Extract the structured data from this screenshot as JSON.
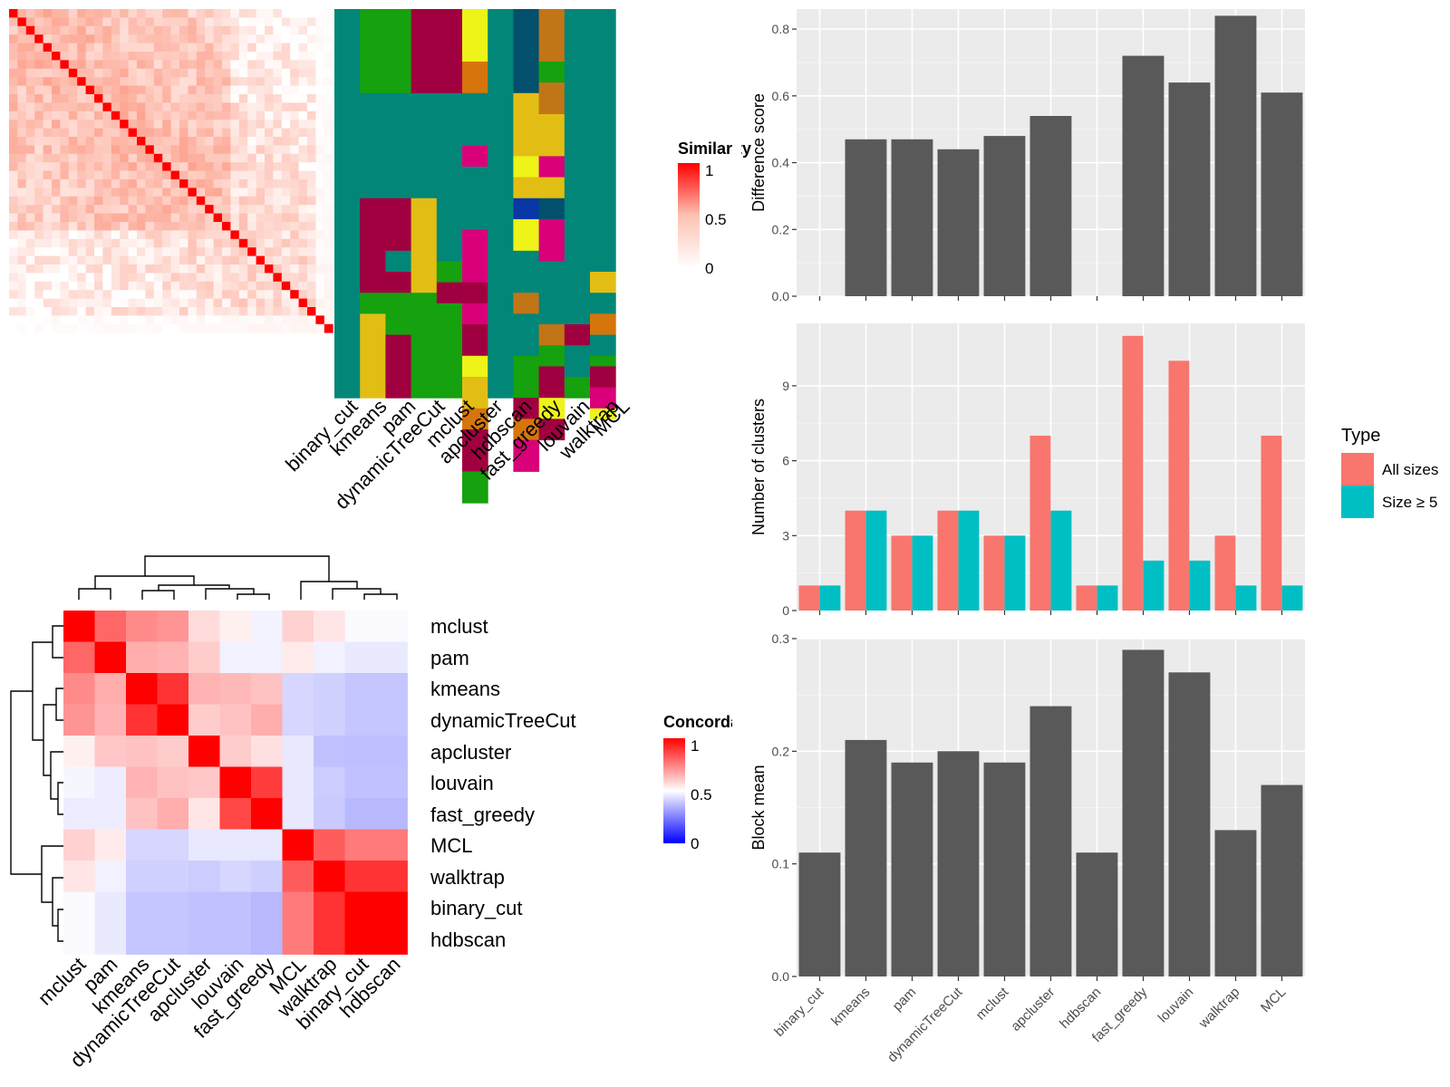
{
  "methods_order": [
    "binary_cut",
    "kmeans",
    "pam",
    "dynamicTreeCut",
    "mclust",
    "apcluster",
    "hdbscan",
    "fast_greedy",
    "louvain",
    "walktrap",
    "MCL"
  ],
  "similarity_panel": {
    "legend_title": "Similarity",
    "legend_ticks": [
      "1",
      "0.5",
      "0"
    ],
    "columns": [
      "binary_cut",
      "kmeans",
      "pam",
      "dynamicTreeCut",
      "mclust",
      "apcluster",
      "hdbscan",
      "fast_greedy",
      "louvain",
      "walktrap",
      "MCL"
    ],
    "palette": {
      "teal": "#028678",
      "green": "#16a10f",
      "darkred": "#a00040",
      "yellow": "#eef318",
      "orange": "#d6750b",
      "navy": "#03506e",
      "gold": "#e2be15",
      "pink": "#d90079",
      "brown": "#c27516",
      "blue": "#0838a6",
      "red": "#ff0000"
    }
  },
  "concordance_panel": {
    "legend_title": "Concordance",
    "legend_ticks": [
      "1",
      "0.5",
      "0"
    ],
    "order": [
      "mclust",
      "pam",
      "kmeans",
      "dynamicTreeCut",
      "apcluster",
      "louvain",
      "fast_greedy",
      "MCL",
      "walktrap",
      "binary_cut",
      "hdbscan"
    ],
    "matrix": [
      [
        1.0,
        0.8,
        0.73,
        0.71,
        0.57,
        0.53,
        0.45,
        0.59,
        0.55,
        0.48,
        0.48
      ],
      [
        0.8,
        1.0,
        0.66,
        0.65,
        0.6,
        0.44,
        0.44,
        0.54,
        0.44,
        0.41,
        0.41
      ],
      [
        0.73,
        0.66,
        1.0,
        0.9,
        0.65,
        0.64,
        0.62,
        0.32,
        0.3,
        0.25,
        0.25
      ],
      [
        0.71,
        0.65,
        0.9,
        1.0,
        0.6,
        0.62,
        0.66,
        0.32,
        0.3,
        0.25,
        0.25
      ],
      [
        0.53,
        0.61,
        0.62,
        0.6,
        1.0,
        0.6,
        0.56,
        0.4,
        0.23,
        0.22,
        0.22
      ],
      [
        0.46,
        0.42,
        0.65,
        0.62,
        0.61,
        1.0,
        0.88,
        0.4,
        0.28,
        0.23,
        0.23
      ],
      [
        0.42,
        0.42,
        0.62,
        0.66,
        0.55,
        0.86,
        1.0,
        0.4,
        0.27,
        0.19,
        0.19
      ],
      [
        0.59,
        0.54,
        0.32,
        0.32,
        0.4,
        0.4,
        0.4,
        1.0,
        0.82,
        0.76,
        0.76
      ],
      [
        0.55,
        0.44,
        0.3,
        0.3,
        0.28,
        0.32,
        0.29,
        0.82,
        1.0,
        0.9,
        0.9
      ],
      [
        0.48,
        0.41,
        0.25,
        0.25,
        0.23,
        0.23,
        0.19,
        0.76,
        0.9,
        1.0,
        1.0
      ],
      [
        0.48,
        0.41,
        0.25,
        0.25,
        0.23,
        0.23,
        0.19,
        0.76,
        0.9,
        1.0,
        1.0
      ]
    ]
  },
  "chart_data": [
    {
      "type": "bar",
      "categories": [
        "binary_cut",
        "kmeans",
        "pam",
        "dynamicTreeCut",
        "mclust",
        "apcluster",
        "hdbscan",
        "fast_greedy",
        "louvain",
        "walktrap",
        "MCL"
      ],
      "values": [
        0,
        0.47,
        0.47,
        0.44,
        0.48,
        0.54,
        0,
        0.72,
        0.64,
        0.84,
        0.61
      ],
      "ylabel": "Difference score",
      "ylim": [
        0,
        0.86
      ],
      "yticks": [
        0.0,
        0.2,
        0.4,
        0.6,
        0.8
      ],
      "ytick_labels": [
        "0.0",
        "0.2",
        "0.4",
        "0.6",
        "0.8"
      ],
      "color": "#595959"
    },
    {
      "type": "bar",
      "categories": [
        "binary_cut",
        "kmeans",
        "pam",
        "dynamicTreeCut",
        "mclust",
        "apcluster",
        "hdbscan",
        "fast_greedy",
        "louvain",
        "walktrap",
        "MCL"
      ],
      "series": [
        {
          "name": "All sizes",
          "color": "#f8766d",
          "values": [
            1,
            4,
            3,
            4,
            3,
            7,
            1,
            11,
            10,
            3,
            7
          ]
        },
        {
          "name": "Size ≥ 5",
          "color": "#00bfc4",
          "values": [
            1,
            4,
            3,
            4,
            3,
            4,
            1,
            2,
            2,
            1,
            1
          ]
        }
      ],
      "legend_title": "Type",
      "legend_position": "right",
      "ylabel": "Number of clusters",
      "ylim": [
        0,
        11.5
      ],
      "yticks": [
        0,
        3,
        6,
        9
      ],
      "ytick_labels": [
        "0",
        "3",
        "6",
        "9"
      ]
    },
    {
      "type": "bar",
      "categories": [
        "binary_cut",
        "kmeans",
        "pam",
        "dynamicTreeCut",
        "mclust",
        "apcluster",
        "hdbscan",
        "fast_greedy",
        "louvain",
        "walktrap",
        "MCL"
      ],
      "values": [
        0.11,
        0.21,
        0.19,
        0.2,
        0.19,
        0.24,
        0.11,
        0.29,
        0.27,
        0.13,
        0.17
      ],
      "ylabel": "Block mean",
      "ylim": [
        0,
        0.3
      ],
      "yticks": [
        0.0,
        0.1,
        0.2,
        0.3
      ],
      "ytick_labels": [
        "0.0",
        "0.1",
        "0.2",
        "0.3"
      ],
      "color": "#595959"
    }
  ]
}
